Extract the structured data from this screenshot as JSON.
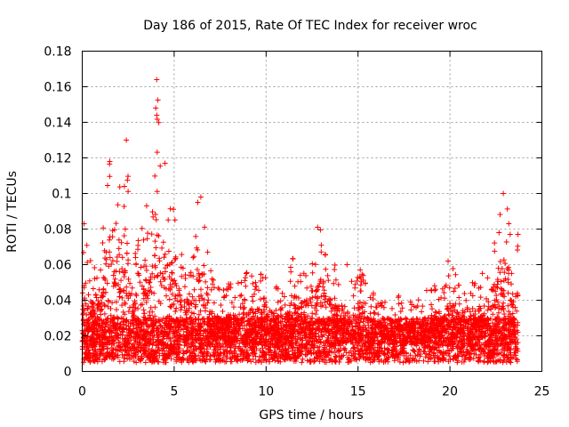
{
  "chart_data": {
    "type": "scatter",
    "title": "Day 186 of 2015, Rate Of TEC Index for receiver wroc",
    "xlabel": "GPS time / hours",
    "ylabel": "ROTI / TECUs",
    "xlim": [
      0,
      25
    ],
    "ylim": [
      0,
      0.18
    ],
    "xticks": [
      0,
      5,
      10,
      15,
      20,
      25
    ],
    "xtick_labels": [
      "0",
      "5",
      "10",
      "15",
      "20",
      "25"
    ],
    "yticks": [
      0,
      0.02,
      0.04,
      0.06,
      0.08,
      0.1,
      0.12,
      0.14,
      0.16,
      0.18
    ],
    "ytick_labels": [
      "0",
      "0.02",
      "0.04",
      "0.06",
      "0.08",
      "0.1",
      "0.12",
      "0.14",
      "0.16",
      "0.18"
    ],
    "grid": true,
    "marker": "+",
    "color": "#ff0000",
    "series": [
      {
        "name": "ROTI",
        "envelope_hours": [
          0,
          0.1,
          0.3,
          0.5,
          0.8,
          1.0,
          1.3,
          1.5,
          1.8,
          2.0,
          2.2,
          2.4,
          2.6,
          2.8,
          3.0,
          3.3,
          3.6,
          3.9,
          4.1,
          4.3,
          4.5,
          4.7,
          5.0,
          5.3,
          5.6,
          6.0,
          6.3,
          6.6,
          6.9,
          7.2,
          7.6,
          8.0,
          8.5,
          9.0,
          9.5,
          10.0,
          10.5,
          11.0,
          11.5,
          12.0,
          12.5,
          13.0,
          13.5,
          14.0,
          14.5,
          15.0,
          15.5,
          16.0,
          16.5,
          17.0,
          17.5,
          18.0,
          18.5,
          19.0,
          19.5,
          20.0,
          20.5,
          21.0,
          21.5,
          22.0,
          22.3,
          22.6,
          22.9,
          23.2,
          23.5,
          23.7
        ],
        "envelope_roti": [
          0.045,
          0.083,
          0.07,
          0.06,
          0.065,
          0.07,
          0.1,
          0.118,
          0.09,
          0.105,
          0.11,
          0.13,
          0.1,
          0.06,
          0.085,
          0.104,
          0.09,
          0.095,
          0.164,
          0.11,
          0.117,
          0.1,
          0.09,
          0.07,
          0.06,
          0.065,
          0.098,
          0.09,
          0.06,
          0.05,
          0.045,
          0.05,
          0.05,
          0.06,
          0.055,
          0.058,
          0.05,
          0.048,
          0.068,
          0.06,
          0.07,
          0.081,
          0.065,
          0.058,
          0.055,
          0.06,
          0.05,
          0.045,
          0.04,
          0.045,
          0.04,
          0.045,
          0.045,
          0.05,
          0.045,
          0.062,
          0.05,
          0.055,
          0.052,
          0.06,
          0.073,
          0.08,
          0.1,
          0.09,
          0.06,
          0.077
        ],
        "baseline_roti": 0.015,
        "spikes": [
          [
            0.1,
            0.083
          ],
          [
            1.5,
            0.118
          ],
          [
            2.4,
            0.13
          ],
          [
            4.05,
            0.164
          ],
          [
            4.0,
            0.148
          ],
          [
            4.05,
            0.144
          ],
          [
            4.5,
            0.117
          ],
          [
            6.45,
            0.098
          ],
          [
            12.8,
            0.081
          ],
          [
            14.4,
            0.06
          ],
          [
            19.9,
            0.062
          ],
          [
            22.9,
            0.1
          ],
          [
            23.2,
            0.083
          ],
          [
            23.7,
            0.077
          ]
        ]
      }
    ]
  }
}
